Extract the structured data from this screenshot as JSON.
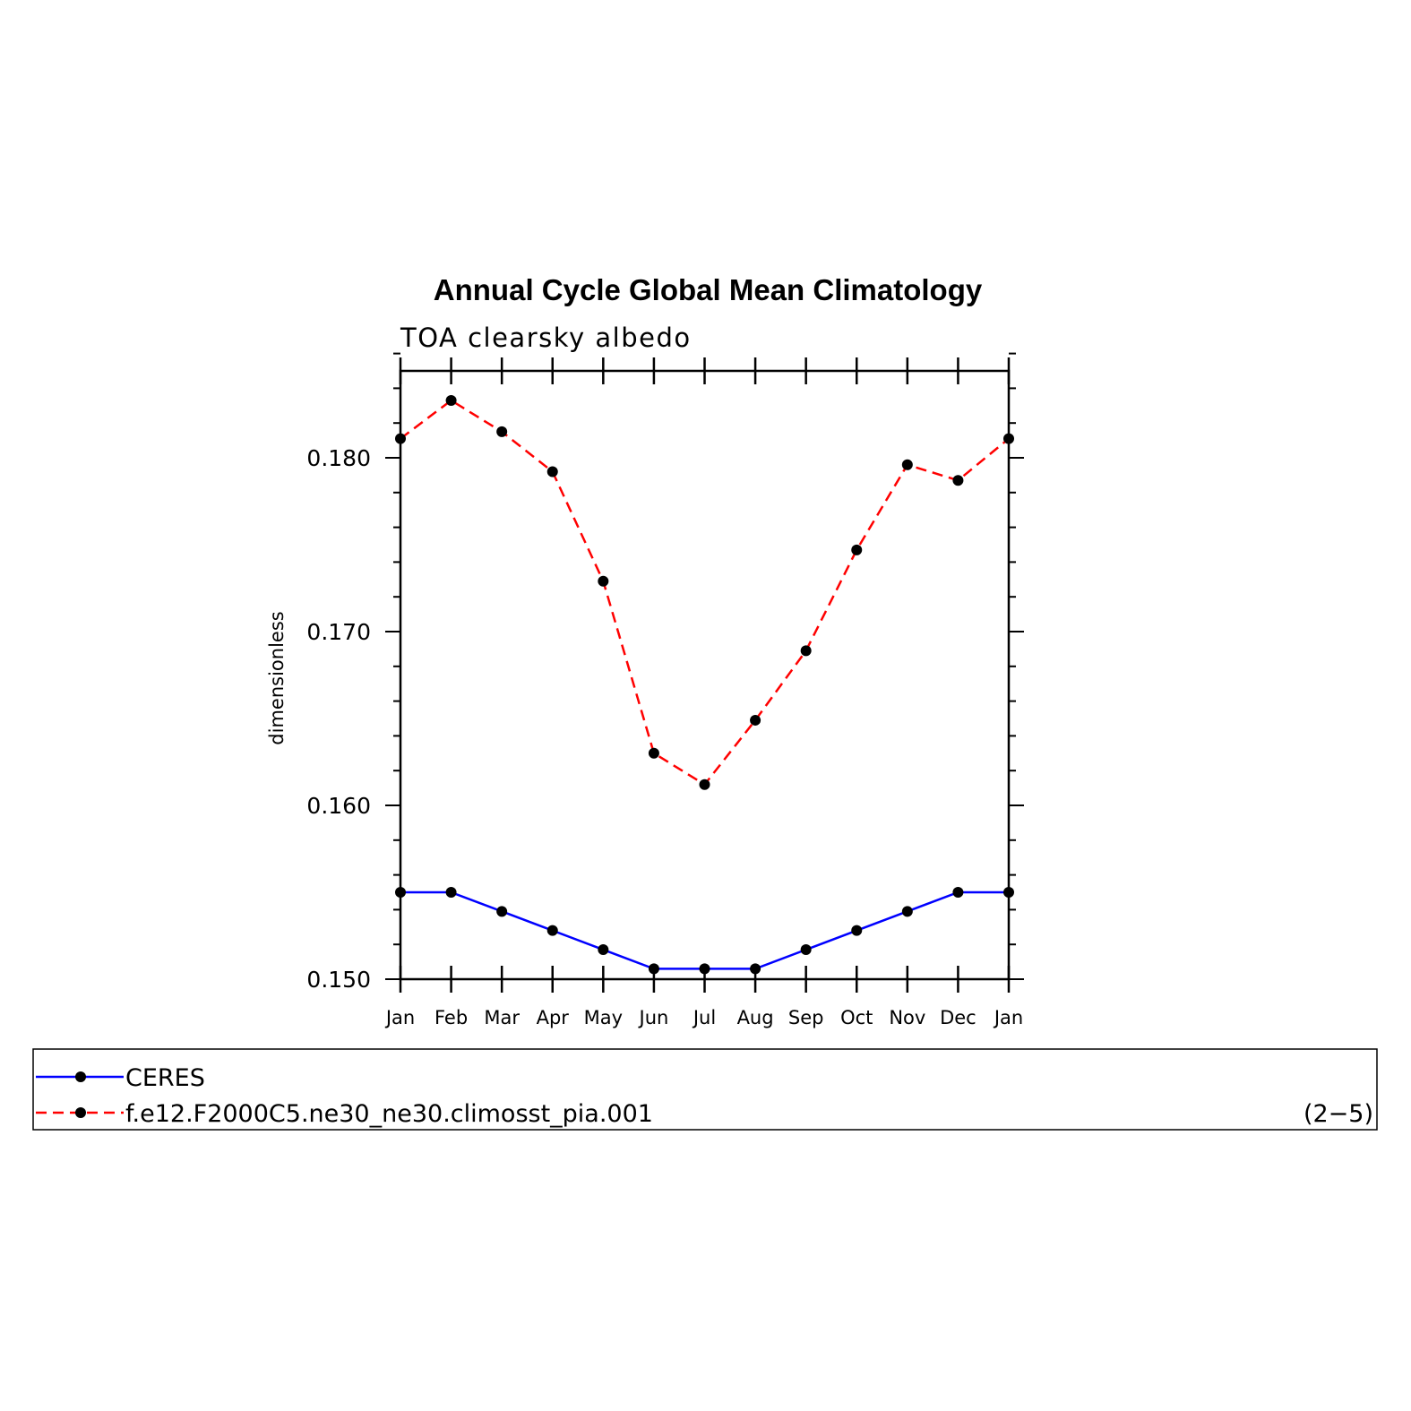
{
  "chart_data": {
    "type": "line",
    "title": "Annual Cycle Global Mean Climatology",
    "subtitle": "TOA clearsky albedo",
    "ylabel": "dimensionless",
    "xlabel": "",
    "categories": [
      "Jan",
      "Feb",
      "Mar",
      "Apr",
      "May",
      "Jun",
      "Jul",
      "Aug",
      "Sep",
      "Oct",
      "Nov",
      "Dec",
      "Jan"
    ],
    "ylim": [
      0.15,
      0.185
    ],
    "yticks": [
      0.15,
      0.16,
      0.17,
      0.18
    ],
    "ytick_labels": [
      "0.150",
      "0.160",
      "0.170",
      "0.180"
    ],
    "series": [
      {
        "name": "CERES",
        "color": "#0000ff",
        "dash": "solid",
        "values": [
          0.155,
          0.155,
          0.1539,
          0.1528,
          0.1517,
          0.1506,
          0.1506,
          0.1506,
          0.1517,
          0.1528,
          0.1539,
          0.155,
          0.155
        ]
      },
      {
        "name": "f.e12.F2000C5.ne30_ne30.climosst_pia.001",
        "color": "#ff0000",
        "dash": "dashed",
        "values": [
          0.1811,
          0.1833,
          0.1815,
          0.1792,
          0.1729,
          0.163,
          0.1612,
          0.1649,
          0.1689,
          0.1747,
          0.1796,
          0.1787,
          0.1811
        ]
      }
    ],
    "legend_placement": "bottom",
    "legend_note": "(2−5)",
    "grid": false
  }
}
